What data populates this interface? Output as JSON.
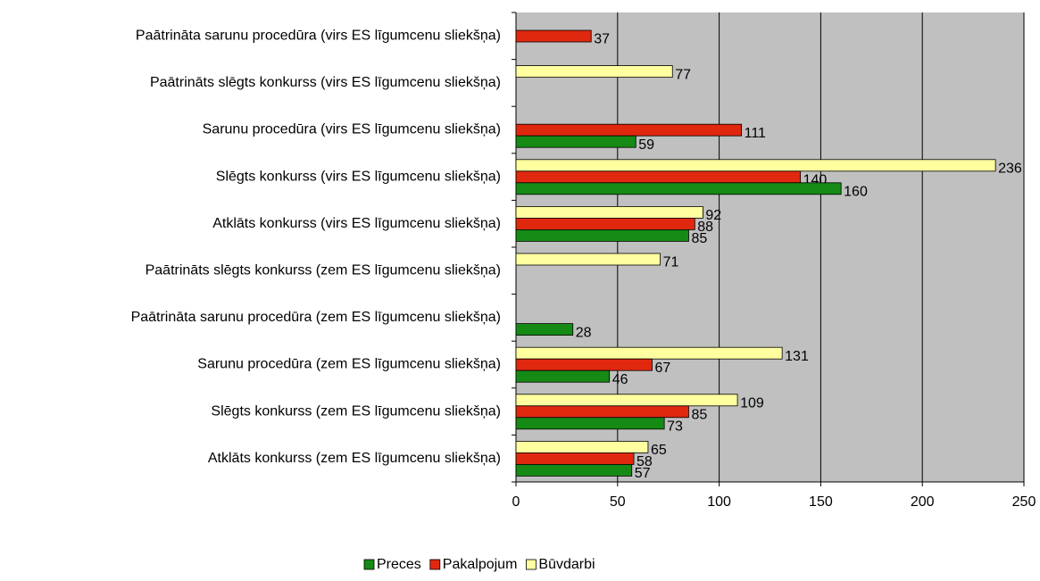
{
  "chart_data": {
    "type": "bar",
    "orientation": "horizontal",
    "categories": [
      "Paātrināta sarunu procedūra (virs ES līgumcenu sliekšņa)",
      "Paātrināts slēgts konkurss (virs ES līgumcenu sliekšņa)",
      "Sarunu procedūra (virs ES līgumcenu sliekšņa)",
      "Slēgts konkurss (virs ES līgumcenu sliekšņa)",
      "Atklāts konkurss (virs ES līgumcenu sliekšņa)",
      "Paātrināts slēgts konkurss (zem ES līgumcenu sliekšņa)",
      "Paātrināta sarunu procedūra (zem ES līgumcenu sliekšņa)",
      "Sarunu procedūra (zem ES līgumcenu sliekšņa)",
      "Slēgts konkurss (zem ES līgumcenu sliekšņa)",
      "Atklāts konkurss (zem ES līgumcenu sliekšņa)"
    ],
    "series": [
      {
        "name": "Būvdarbi",
        "color": "#ffffa0",
        "values": [
          null,
          77,
          null,
          236,
          92,
          71,
          null,
          131,
          109,
          65
        ]
      },
      {
        "name": "Pakalpojum",
        "color": "#e0280f",
        "values": [
          37,
          null,
          111,
          140,
          88,
          null,
          null,
          67,
          85,
          58
        ]
      },
      {
        "name": "Preces",
        "color": "#158a15",
        "values": [
          null,
          null,
          59,
          160,
          85,
          null,
          28,
          46,
          73,
          57
        ]
      }
    ],
    "xlim": [
      0,
      250
    ],
    "xticks": [
      0,
      50,
      100,
      150,
      200,
      250
    ],
    "grid": true,
    "legend": "bottom"
  }
}
